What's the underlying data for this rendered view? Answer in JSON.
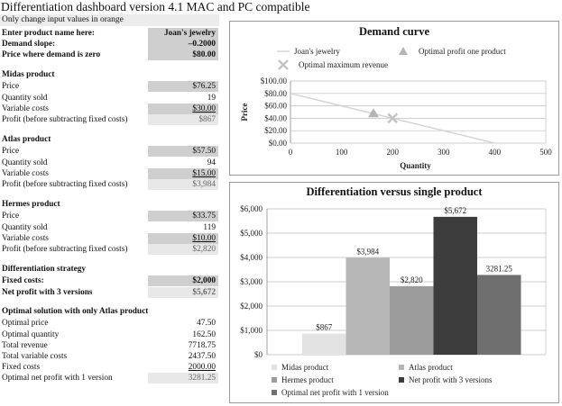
{
  "title": "Differentiation dashboard version 4.1 MAC and PC compatible",
  "note": "Only change input values in orange",
  "inputs": [
    {
      "label": "Enter product name here:",
      "value": "Joan's jewelry",
      "bold": true,
      "style": "gray"
    },
    {
      "label": "Demand slope:",
      "value": "–0.2000",
      "bold": true,
      "style": "gray"
    },
    {
      "label": "Price where demand is zero",
      "value": "$80.00",
      "bold": true,
      "style": "gray"
    }
  ],
  "sections": [
    {
      "heading": "Midas product",
      "rows": [
        {
          "label": "Price",
          "value": "$76.25",
          "style": "gray"
        },
        {
          "label": "Quantity sold",
          "value": "19",
          "style": "none"
        },
        {
          "label": "Variable costs",
          "value": "$30.00",
          "style": "gray",
          "underline": true
        },
        {
          "label": "Profit (before subtracting fixed costs)",
          "value": "$867",
          "style": "light"
        }
      ]
    },
    {
      "heading": "Atlas product",
      "rows": [
        {
          "label": "Price",
          "value": "$57.50",
          "style": "gray"
        },
        {
          "label": "Quantity sold",
          "value": "94",
          "style": "none"
        },
        {
          "label": "Variable costs",
          "value": "$15.00",
          "style": "gray",
          "underline": true
        },
        {
          "label": "Profit (before subtracting fixed costs)",
          "value": "$3,984",
          "style": "light"
        }
      ]
    },
    {
      "heading": "Hermes product",
      "rows": [
        {
          "label": "Price",
          "value": "$33.75",
          "style": "gray"
        },
        {
          "label": "Quantity sold",
          "value": "119",
          "style": "none"
        },
        {
          "label": "Variable costs",
          "value": "$10.00",
          "style": "gray",
          "underline": true
        },
        {
          "label": "Profit (before subtracting fixed costs)",
          "value": "$2,820",
          "style": "light"
        }
      ]
    },
    {
      "heading": "Differentiation strategy",
      "rows": [
        {
          "label": "Fixed costs:",
          "value": "$2,000",
          "style": "gray",
          "bold": true
        },
        {
          "label": "Net profit with 3 versions",
          "value": "$5,672",
          "style": "light",
          "bold": true
        }
      ]
    },
    {
      "heading": "Optimal solution with only Atlas product",
      "rows": [
        {
          "label": "Optimal price",
          "value": "47.50",
          "style": "none"
        },
        {
          "label": "Optimal quantity",
          "value": "162.50",
          "style": "none"
        },
        {
          "label": "Total revenue",
          "value": "7718.75",
          "style": "none"
        },
        {
          "label": "Total variable costs",
          "value": "2437.50",
          "style": "none"
        },
        {
          "label": "Fixed costs",
          "value": "2000.00",
          "style": "none",
          "underline": true
        },
        {
          "label": "Optimal net profit with 1 version",
          "value": "3281.25",
          "style": "light"
        }
      ]
    }
  ],
  "chart_data": [
    {
      "type": "line",
      "title": "Demand curve",
      "xlabel": "Quantity",
      "ylabel": "Price",
      "xlim": [
        0,
        500
      ],
      "ylim": [
        0,
        100
      ],
      "xticks": [
        "0",
        "100",
        "200",
        "300",
        "400",
        "500"
      ],
      "yticks": [
        "$0.00",
        "$20.00",
        "$40.00",
        "$60.00",
        "$80.00",
        "$100.00"
      ],
      "series": [
        {
          "name": "Joan's jewelry",
          "kind": "line",
          "color": "#d4d4d4",
          "points": [
            [
              0,
              80
            ],
            [
              400,
              0
            ]
          ]
        },
        {
          "name": "Optimal profit one product",
          "kind": "triangle",
          "color": "#b5b5b5",
          "points": [
            [
              162.5,
              47.5
            ]
          ]
        },
        {
          "name": "Optimal maximum revenue",
          "kind": "cross",
          "color": "#c4c4c4",
          "points": [
            [
              200,
              40
            ]
          ]
        }
      ],
      "grid": true,
      "legend": "top"
    },
    {
      "type": "bar",
      "title": "Differentiation versus single product",
      "ylim": [
        0,
        6000
      ],
      "yticks": [
        "$0",
        "$1,000",
        "$2,000",
        "$3,000",
        "$4,000",
        "$5,000",
        "$6,000"
      ],
      "series": [
        {
          "name": "Midas product",
          "value": 867,
          "label": "$867",
          "color": "#e3e3e3"
        },
        {
          "name": "Atlas product",
          "value": 3984,
          "label": "$3,984",
          "color": "#b7b7b7"
        },
        {
          "name": "Hermes product",
          "value": 2820,
          "label": "$2,820",
          "color": "#9c9c9c"
        },
        {
          "name": "Net profit with 3 versions",
          "value": 5672,
          "label": "$5,672",
          "color": "#3c3c3c"
        },
        {
          "name": "Optimal net profit with 1 version",
          "value": 3281.25,
          "label": "3281.25",
          "color": "#6f6f6f"
        }
      ],
      "grid": true,
      "legend": "bottom"
    }
  ]
}
